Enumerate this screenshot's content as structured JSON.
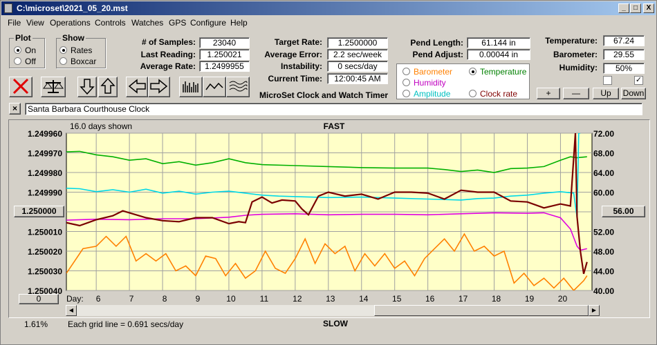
{
  "window": {
    "title": "C:\\microset\\2021_05_20.mst",
    "controls": {
      "minimize": "_",
      "maximize": "□",
      "close": "X"
    }
  },
  "menu": [
    "File",
    "View",
    "Operations",
    "Controls",
    "Watches",
    "GPS",
    "Configure",
    "Help"
  ],
  "plot_group": {
    "title": "Plot",
    "options": [
      "On",
      "Off"
    ],
    "selected": "On"
  },
  "show_group": {
    "title": "Show",
    "options": [
      "Rates",
      "Boxcar"
    ],
    "selected": "Rates"
  },
  "stats1": {
    "samples_label": "# of Samples:",
    "samples": "23040",
    "last_label": "Last Reading:",
    "last": "1.250021",
    "avg_label": "Average Rate:",
    "avg": "1.2499955"
  },
  "stats2": {
    "target_label": "Target Rate:",
    "target": "1.2500000",
    "error_label": "Average Error:",
    "error": "2.2 sec/week",
    "instab_label": "Instability:",
    "instab": "0 secs/day",
    "time_label": "Current Time:",
    "time": "12:00:45 AM",
    "app_title": "MicroSet Clock and Watch Timer"
  },
  "stats3": {
    "pend_len_label": "Pend Length:",
    "pend_len": "61.144 in",
    "pend_adj_label": "Pend Adjust:",
    "pend_adj": "0.00044 in"
  },
  "stats4": {
    "temp_label": "Temperature:",
    "temp": "67.24",
    "baro_label": "Barometer:",
    "baro": "29.55",
    "hum_label": "Humidity:",
    "hum": "50%"
  },
  "sensor_options": {
    "barometer": "Barometer",
    "temperature": "Temperature",
    "humidity": "Humidity",
    "amplitude": "Amplitude",
    "clock_rate": "Clock rate",
    "selected": "Temperature",
    "colors": {
      "barometer": "#ff8000",
      "temperature": "#008000",
      "humidity": "#c000c0",
      "amplitude": "#00c0c0",
      "clock_rate": "#800000"
    }
  },
  "adjust_buttons": {
    "plus": "+",
    "minus": "—",
    "up": "Up",
    "down": "Down"
  },
  "checkboxes": [
    {
      "checked": false
    },
    {
      "checked": true
    }
  ],
  "toolbar_icons": [
    "close-x-icon",
    "balance-scale-icon",
    "arrow-down-icon",
    "arrow-up-icon",
    "arrow-left-icon",
    "arrow-right-icon",
    "bars-icon",
    "wave-icon",
    "multi-wave-icon"
  ],
  "description": {
    "close_label": "×",
    "value": "Santa Barbara Courthouse Clock"
  },
  "graph": {
    "days_shown": "16.0 days shown",
    "fast_label": "FAST",
    "slow_label": "SLOW",
    "left_button": "1.250000",
    "right_button": "56.00",
    "bottom_button": "0",
    "day_label": "Day:",
    "grid_note": "Each grid line = 0.691 secs/day",
    "percent": "1.61%"
  },
  "chart_data": {
    "type": "line",
    "title": "",
    "xlabel": "Day:",
    "ylabel_left": "",
    "ylabel_right": "",
    "x_ticks": [
      6,
      7,
      8,
      9,
      10,
      11,
      12,
      13,
      14,
      15,
      16,
      17,
      18,
      19,
      20
    ],
    "xlim": [
      5.1,
      20.95
    ],
    "y_left_ticks": [
      "1.249960",
      "1.249970",
      "1.249980",
      "1.249990",
      "1.250000",
      "1.250010",
      "1.250020",
      "1.250030",
      "1.250040"
    ],
    "y_left_range": [
      1.24996,
      1.25004
    ],
    "y_right_ticks": [
      "72.00",
      "68.00",
      "64.00",
      "60.00",
      "56.00",
      "52.00",
      "48.00",
      "44.00",
      "40.00"
    ],
    "y_right_range": [
      72,
      40
    ],
    "grid": true,
    "series": [
      {
        "key": "temperature",
        "color": "#00b000",
        "x": [
          5.1,
          5.5,
          6,
          6.5,
          7,
          7.5,
          8,
          8.5,
          9,
          9.5,
          10,
          10.5,
          11,
          12,
          13,
          14,
          15,
          16,
          16.5,
          17,
          17.5,
          18,
          18.5,
          19,
          19.5,
          20,
          20.3,
          20.5,
          20.8
        ],
        "y": [
          68.2,
          68.3,
          67.6,
          67.2,
          66.5,
          66.8,
          65.8,
          66.2,
          65.5,
          66.0,
          66.8,
          66.0,
          65.6,
          65.4,
          65.2,
          65.0,
          64.9,
          64.9,
          64.6,
          64.2,
          64.5,
          64.0,
          64.8,
          64.9,
          65.2,
          66.5,
          67.2,
          67.0,
          67.2
        ]
      },
      {
        "key": "amplitude",
        "color": "#00d8e8",
        "x": [
          5.1,
          5.5,
          6,
          6.5,
          7,
          7.5,
          8,
          8.5,
          9,
          9.5,
          10,
          10.5,
          11,
          11.5,
          12,
          13,
          14,
          15,
          16,
          17,
          17.5,
          18,
          18.5,
          19,
          19.5,
          20,
          20.4,
          20.5,
          20.55,
          20.6
        ],
        "y": [
          60.8,
          60.7,
          60.1,
          60.5,
          60.0,
          60.6,
          59.8,
          60.2,
          59.6,
          60.0,
          60.2,
          59.8,
          59.4,
          59.2,
          59.1,
          58.9,
          59.0,
          58.8,
          58.6,
          58.4,
          58.7,
          58.8,
          59.2,
          59.4,
          59.8,
          60.1,
          59.8,
          54.8,
          72.0,
          72.0
        ]
      },
      {
        "key": "humidity",
        "color": "#e000e0",
        "x": [
          5.1,
          6,
          7,
          8,
          9,
          10,
          10.5,
          11,
          12,
          13,
          14,
          15,
          16,
          17,
          18,
          19,
          19.5,
          20,
          20.3,
          20.5,
          20.6,
          20.8
        ],
        "y": [
          54.3,
          54.5,
          54.4,
          54.6,
          54.6,
          54.9,
          55.3,
          55.5,
          55.6,
          55.4,
          55.5,
          55.5,
          55.4,
          55.6,
          55.8,
          55.7,
          55.8,
          54.8,
          52.5,
          49.0,
          48.2,
          48.5
        ]
      },
      {
        "key": "barometer",
        "color": "#ff8000",
        "x": [
          5.1,
          5.3,
          5.6,
          6.0,
          6.3,
          6.6,
          6.9,
          7.2,
          7.5,
          7.8,
          8.1,
          8.4,
          8.7,
          9.0,
          9.3,
          9.6,
          9.9,
          10.2,
          10.5,
          10.8,
          11.1,
          11.4,
          11.7,
          12.0,
          12.3,
          12.6,
          12.9,
          13.2,
          13.5,
          13.8,
          14.1,
          14.4,
          14.7,
          15.0,
          15.3,
          15.6,
          15.9,
          16.2,
          16.5,
          16.8,
          17.1,
          17.4,
          17.7,
          18.0,
          18.3,
          18.6,
          18.9,
          19.2,
          19.5,
          19.8,
          20.1,
          20.4,
          20.7,
          20.8
        ],
        "y": [
          43.5,
          45.5,
          48.5,
          49.0,
          51.0,
          49.0,
          51.0,
          46.0,
          47.5,
          46.0,
          47.5,
          44.0,
          45.0,
          43.0,
          47.0,
          46.5,
          43.0,
          45.5,
          42.5,
          44.0,
          48.0,
          44.5,
          43.5,
          46.5,
          50.5,
          45.5,
          49.5,
          47.5,
          49.0,
          44.0,
          47.5,
          45.0,
          47.5,
          44.5,
          46.0,
          43.0,
          46.5,
          48.5,
          50.5,
          48.0,
          51.5,
          48.0,
          49.0,
          47.0,
          48.0,
          41.5,
          43.5,
          41.0,
          42.5,
          40.5,
          42.5,
          40.0,
          42.0,
          43.0
        ]
      },
      {
        "key": "clock_rate",
        "color": "#7a0000",
        "x": [
          5.1,
          5.5,
          6.0,
          6.5,
          6.8,
          7.0,
          7.5,
          8.0,
          8.5,
          9.0,
          9.5,
          10.0,
          10.3,
          10.5,
          10.7,
          11.0,
          11.3,
          11.6,
          12.0,
          12.2,
          12.4,
          12.7,
          13.0,
          13.5,
          14.0,
          14.5,
          15.0,
          15.5,
          16.0,
          16.5,
          17.0,
          17.5,
          18.0,
          18.5,
          19.0,
          19.5,
          20.0,
          20.3,
          20.45,
          20.5,
          20.6,
          20.7,
          20.8
        ],
        "y": [
          1.2500055,
          1.250007,
          1.250004,
          1.250002,
          1.2499995,
          1.2500005,
          1.250003,
          1.2500045,
          1.250005,
          1.250003,
          1.250003,
          1.250006,
          1.250005,
          1.2500055,
          1.249995,
          1.2499925,
          1.2499955,
          1.249994,
          1.2499945,
          1.2499985,
          1.2500015,
          1.249992,
          1.24999,
          1.249992,
          1.249991,
          1.2499935,
          1.24999,
          1.24999,
          1.2499905,
          1.2499935,
          1.249989,
          1.24999,
          1.24999,
          1.2499945,
          1.249995,
          1.249998,
          1.249996,
          1.249997,
          1.24996,
          1.2500025,
          1.25002,
          1.2500315,
          1.2500255
        ]
      }
    ]
  }
}
